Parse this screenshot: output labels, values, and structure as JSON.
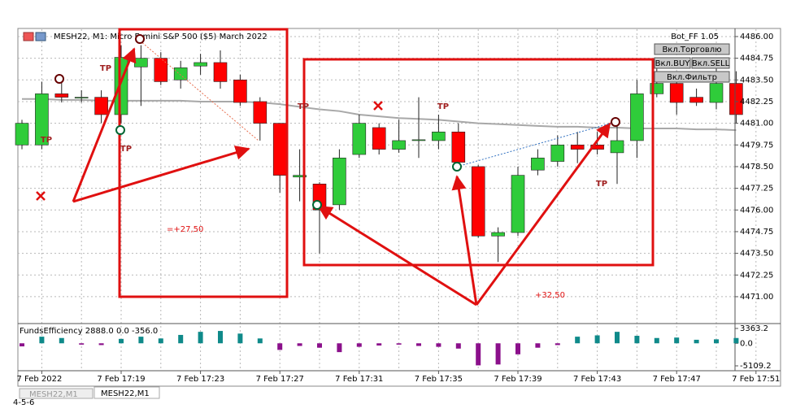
{
  "chart_data": [
    {
      "type": "candlestick",
      "title": "MESH22, M1:  Micro E-mini S&P 500 ($5) March 2022",
      "categories": [
        null,
        "7 Feb 2022",
        null,
        null,
        null,
        "7 Feb 17:19",
        null,
        null,
        null,
        "7 Feb 17:23",
        null,
        null,
        null,
        "7 Feb 17:27",
        null,
        null,
        null,
        "7 Feb 17:31",
        null,
        null,
        null,
        "7 Feb 17:35",
        null,
        null,
        null,
        "7 Feb 17:39",
        null,
        null,
        null,
        "7 Feb 17:43",
        null,
        null,
        null,
        "7 Feb 17:47",
        null,
        null,
        null,
        "7 Feb 17:51"
      ],
      "open": [
        4479.75,
        4479.75,
        4482.7,
        4482.45,
        4482.5,
        4481.5,
        4484.25,
        4484.75,
        4483.5,
        4484.3,
        4484.5,
        4483.5,
        4482.25,
        4481.0,
        4477.9,
        4477.5,
        4476.3,
        4479.2,
        4480.75,
        4479.5,
        4480.0,
        4480.0,
        4480.5,
        4478.5,
        4474.5,
        4474.7,
        4478.3,
        4478.8,
        4479.75,
        4479.75,
        4479.3,
        4480.0,
        4482.7,
        4483.3,
        4482.5,
        4482.2,
        4483.3,
        null
      ],
      "high": [
        4481.2,
        4483.4,
        4483.4,
        4482.9,
        4482.9,
        4485.5,
        4485.5,
        4485.1,
        4484.6,
        4485.0,
        4485.2,
        4483.8,
        4482.5,
        4481.0,
        4479.5,
        4477.6,
        4479.5,
        4481.5,
        4481.0,
        4481.2,
        4482.5,
        4481.5,
        4481.0,
        4478.6,
        4475.0,
        4478.5,
        4479.5,
        4480.3,
        4480.5,
        4480.5,
        4481.0,
        4483.5,
        4484.5,
        4484.0,
        4483.0,
        4484.5,
        4484.0,
        null
      ],
      "low": [
        4479.5,
        4479.5,
        4482.2,
        4482.2,
        4481.0,
        4481.0,
        4482.0,
        4483.2,
        4483.0,
        4483.8,
        4483.0,
        4482.0,
        4480.0,
        4477.0,
        4476.5,
        4473.5,
        4476.0,
        4479.0,
        4479.2,
        4479.3,
        4479.0,
        4479.5,
        4478.5,
        4474.4,
        4473.0,
        4474.5,
        4478.0,
        4478.5,
        4478.7,
        4479.2,
        4477.5,
        4479.0,
        4482.5,
        4481.5,
        4482.0,
        4481.8,
        4481.0,
        null
      ],
      "close": [
        4481.0,
        4482.7,
        4482.5,
        4482.5,
        4481.5,
        4484.8,
        4484.75,
        4483.4,
        4484.2,
        4484.5,
        4483.4,
        4482.2,
        4481.0,
        4478.0,
        4478.0,
        4476.0,
        4479.0,
        4481.0,
        4479.5,
        4480.0,
        4480.05,
        4480.5,
        4478.75,
        4474.5,
        4474.7,
        4478.0,
        4479.0,
        4479.75,
        4479.5,
        4479.5,
        4480.0,
        4482.7,
        4483.3,
        4482.2,
        4482.2,
        4483.3,
        4481.5,
        null
      ],
      "ma": [
        4482.4,
        4482.4,
        4482.35,
        4482.35,
        4482.3,
        4482.3,
        4482.3,
        4482.3,
        4482.3,
        4482.25,
        4482.25,
        4482.25,
        4482.2,
        4482.1,
        4481.95,
        4481.8,
        4481.7,
        4481.5,
        4481.4,
        4481.3,
        4481.25,
        4481.2,
        4481.1,
        4481.0,
        4480.95,
        4480.9,
        4480.85,
        4480.8,
        4480.8,
        4480.75,
        4480.75,
        4480.7,
        4480.7,
        4480.7,
        4480.65,
        4480.65,
        4480.6,
        null
      ],
      "up_color": "#2fcc3a",
      "down_color": "#ff0000",
      "ma_color": "#a8a8a8",
      "ylim": [
        4469.45,
        4486.42
      ],
      "yticks": [
        {
          "value": 4486,
          "label": "4486.00"
        },
        {
          "value": 4484.75,
          "label": "4484.75"
        },
        {
          "value": 4483.5,
          "label": "4483.50"
        },
        {
          "value": 4482.25,
          "label": "4482.25"
        },
        {
          "value": 4481,
          "label": "4481.00"
        },
        {
          "value": 4479.75,
          "label": "4479.75"
        },
        {
          "value": 4478.5,
          "label": "4478.50"
        },
        {
          "value": 4477.25,
          "label": "4477.25"
        },
        {
          "value": 4476,
          "label": "4476.00"
        },
        {
          "value": 4474.75,
          "label": "4474.75"
        },
        {
          "value": 4473.5,
          "label": "4473.50"
        },
        {
          "value": 4472.25,
          "label": "4472.25"
        },
        {
          "value": 4471,
          "label": "4471.00"
        }
      ],
      "grid": true,
      "annotations": [
        "=+27,50",
        "+32,50"
      ],
      "tp_labels": [
        "TP",
        "TP",
        "TP",
        "TP",
        "TP",
        "TP"
      ]
    },
    {
      "type": "bar",
      "title": "FundsEfficiency 2888.0 0.0 -356.0",
      "values": [
        -700,
        1500,
        1200,
        -300,
        -400,
        1000,
        1500,
        1100,
        1900,
        2600,
        2800,
        2200,
        1100,
        -1500,
        -600,
        -1000,
        -2000,
        -800,
        -500,
        -300,
        -600,
        -800,
        -1200,
        -5000,
        -4800,
        -2500,
        -1000,
        -400,
        1500,
        1800,
        2600,
        1700,
        1200,
        1300,
        800,
        900,
        1200,
        null
      ],
      "pos_color": "#0f8a8a",
      "neg_color": "#8b108b",
      "ylim": [
        -6213,
        4284
      ],
      "yticks": [
        {
          "value": 3363.2,
          "label": "3363.2"
        },
        {
          "value": 0,
          "label": "0.0"
        },
        {
          "value": -5109.2,
          "label": "-5109.2"
        }
      ]
    }
  ],
  "panel": {
    "name": "Bot_FF 1.05",
    "buttons": [
      "Вкл.Торговлю",
      "Вкл.BUY",
      "Вкл.SELL",
      "Вкл.Фильтр"
    ]
  },
  "tabs": [
    "MESH22,M1",
    "MESH22,M1"
  ],
  "caption": "4-5-6"
}
